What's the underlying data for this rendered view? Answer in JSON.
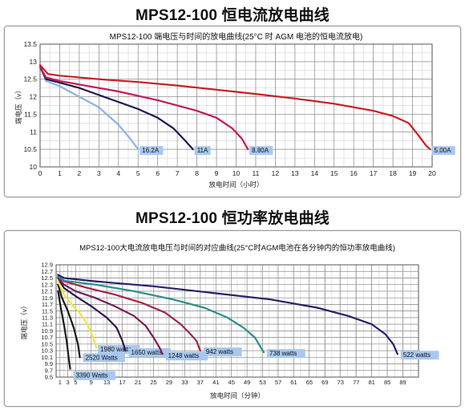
{
  "page": {
    "title1": "MPS12-100 恒电流放电曲线",
    "title2": "MPS12-100 恒功率放电曲线"
  },
  "chart_data": [
    {
      "type": "line",
      "title": "MPS12-100 端电压与时间的放电曲线(25°C 时 AGM 电池的恒电流放电)",
      "xlabel": "放电时间（小时）",
      "ylabel": "端电压（v）",
      "xlim": [
        0,
        20
      ],
      "ylim": [
        10,
        13.5
      ],
      "x_ticks": [
        "0",
        "1",
        "2",
        "3",
        "4",
        "5",
        "6",
        "7",
        "8",
        "9",
        "10",
        "11",
        "12",
        "13",
        "14",
        "15",
        "16",
        "17",
        "18",
        "19",
        "20"
      ],
      "y_ticks": [
        "10",
        "10.5",
        "11",
        "11.5",
        "12",
        "12.5",
        "13",
        "13.5"
      ],
      "grid": true,
      "series": [
        {
          "name": "16.2A",
          "color": "#8ab4e6",
          "points": [
            [
              0,
              12.9
            ],
            [
              0.3,
              12.45
            ],
            [
              1,
              12.3
            ],
            [
              2,
              12.0
            ],
            [
              3,
              11.7
            ],
            [
              4,
              11.2
            ],
            [
              4.6,
              10.8
            ],
            [
              5,
              10.5
            ]
          ]
        },
        {
          "name": "11A",
          "color": "#1e1a4e",
          "points": [
            [
              0,
              12.85
            ],
            [
              0.3,
              12.5
            ],
            [
              1,
              12.4
            ],
            [
              2,
              12.25
            ],
            [
              3,
              12.05
            ],
            [
              4,
              11.85
            ],
            [
              5,
              11.65
            ],
            [
              6,
              11.4
            ],
            [
              6.8,
              11.1
            ],
            [
              7.4,
              10.75
            ],
            [
              7.8,
              10.5
            ]
          ]
        },
        {
          "name": "8.80A",
          "color": "#c8185a",
          "points": [
            [
              0,
              12.85
            ],
            [
              0.3,
              12.55
            ],
            [
              1,
              12.45
            ],
            [
              2,
              12.35
            ],
            [
              4,
              12.15
            ],
            [
              6,
              11.9
            ],
            [
              8,
              11.6
            ],
            [
              9,
              11.4
            ],
            [
              9.8,
              11.1
            ],
            [
              10.3,
              10.8
            ],
            [
              10.6,
              10.5
            ]
          ]
        },
        {
          "name": "5.00A",
          "color": "#c81f25",
          "points": [
            [
              0,
              12.9
            ],
            [
              0.4,
              12.65
            ],
            [
              1,
              12.6
            ],
            [
              3,
              12.5
            ],
            [
              5,
              12.42
            ],
            [
              7,
              12.32
            ],
            [
              9,
              12.2
            ],
            [
              11,
              12.08
            ],
            [
              13,
              11.95
            ],
            [
              15,
              11.8
            ],
            [
              17,
              11.6
            ],
            [
              18,
              11.45
            ],
            [
              18.8,
              11.25
            ],
            [
              19.3,
              10.9
            ],
            [
              19.7,
              10.6
            ],
            [
              19.9,
              10.5
            ]
          ]
        }
      ]
    },
    {
      "type": "line",
      "title": "MPS12-100大电流放电电压与时间的对应曲线(25°C时AGM电池在各分钟内的恒功率放电曲线)",
      "xlabel": "放电时间（分钟）",
      "ylabel": "端电压（v）",
      "xlim": [
        0,
        93
      ],
      "ylim": [
        9.5,
        12.9
      ],
      "x_ticks": [
        "1",
        "3",
        "5",
        "9",
        "13",
        "17",
        "21",
        "25",
        "29",
        "33",
        "37",
        "41",
        "45",
        "49",
        "53",
        "57",
        "61",
        "65",
        "69",
        "73",
        "77",
        "81",
        "85",
        "89"
      ],
      "x_tick_values": [
        1,
        3,
        5,
        9,
        13,
        17,
        21,
        25,
        29,
        33,
        37,
        41,
        45,
        49,
        53,
        57,
        61,
        65,
        69,
        73,
        77,
        81,
        85,
        89
      ],
      "y_ticks": [
        "9.5",
        "9.7",
        "9.9",
        "10.1",
        "10.3",
        "10.5",
        "10.7",
        "10.9",
        "11.1",
        "11.3",
        "11.5",
        "11.7",
        "11.9",
        "12.1",
        "12.3",
        "12.5",
        "12.7",
        "12.9"
      ],
      "y_tick_values": [
        9.5,
        9.7,
        9.9,
        10.1,
        10.3,
        10.5,
        10.7,
        10.9,
        11.1,
        11.3,
        11.5,
        11.7,
        11.9,
        12.1,
        12.3,
        12.5,
        12.7,
        12.9
      ],
      "grid": true,
      "series": [
        {
          "name": "3390 Watts",
          "color": "#1a1a1a",
          "points": [
            [
              0.5,
              12.1
            ],
            [
              1.2,
              11.6
            ],
            [
              2,
              11.1
            ],
            [
              2.7,
              10.6
            ],
            [
              3.2,
              10.1
            ],
            [
              3.6,
              9.75
            ]
          ]
        },
        {
          "name": "2520 Watts",
          "color": "#1a1a1a",
          "points": [
            [
              0.5,
              12.3
            ],
            [
              1.5,
              11.9
            ],
            [
              3,
              11.5
            ],
            [
              4.5,
              11.0
            ],
            [
              5.6,
              10.5
            ],
            [
              6.1,
              10.1
            ]
          ]
        },
        {
          "name": "1980 watts",
          "color": "#f0e63c",
          "points": [
            [
              0.5,
              12.4
            ],
            [
              2,
              12.0
            ],
            [
              4,
              11.7
            ],
            [
              6,
              11.45
            ],
            [
              8,
              11.1
            ],
            [
              9.5,
              10.7
            ],
            [
              10.3,
              10.4
            ]
          ]
        },
        {
          "name": "1650 watts",
          "color": "#2b1a4a",
          "points": [
            [
              0.5,
              12.5
            ],
            [
              2,
              12.2
            ],
            [
              5,
              11.95
            ],
            [
              9,
              11.65
            ],
            [
              13,
              11.3
            ],
            [
              15.5,
              11.0
            ],
            [
              17,
              10.6
            ],
            [
              17.8,
              10.3
            ]
          ]
        },
        {
          "name": "1248 watts",
          "color": "#7a1d5a",
          "points": [
            [
              0.5,
              12.5
            ],
            [
              2,
              12.3
            ],
            [
              5,
              12.1
            ],
            [
              10,
              11.9
            ],
            [
              15,
              11.65
            ],
            [
              20,
              11.35
            ],
            [
              23,
              11.05
            ],
            [
              25,
              10.7
            ],
            [
              26.5,
              10.4
            ],
            [
              27.3,
              10.2
            ]
          ]
        },
        {
          "name": "942 watts",
          "color": "#a0264a",
          "points": [
            [
              0.5,
              12.55
            ],
            [
              2,
              12.4
            ],
            [
              8,
              12.2
            ],
            [
              15,
              12.0
            ],
            [
              22,
              11.75
            ],
            [
              28,
              11.45
            ],
            [
              32,
              11.1
            ],
            [
              34.5,
              10.8
            ],
            [
              36,
              10.6
            ],
            [
              37,
              10.3
            ]
          ]
        },
        {
          "name": "738 watts",
          "color": "#2a8f8a",
          "points": [
            [
              0.5,
              12.55
            ],
            [
              2,
              12.42
            ],
            [
              10,
              12.3
            ],
            [
              20,
              12.1
            ],
            [
              30,
              11.85
            ],
            [
              38,
              11.6
            ],
            [
              44,
              11.3
            ],
            [
              48,
              11.0
            ],
            [
              51,
              10.7
            ],
            [
              52.5,
              10.4
            ],
            [
              53.3,
              10.25
            ]
          ]
        },
        {
          "name": "522 watts",
          "color": "#26206a",
          "points": [
            [
              0.5,
              12.6
            ],
            [
              2,
              12.5
            ],
            [
              10,
              12.4
            ],
            [
              25,
              12.25
            ],
            [
              40,
              12.05
            ],
            [
              55,
              11.85
            ],
            [
              67,
              11.6
            ],
            [
              75,
              11.35
            ],
            [
              81,
              11.1
            ],
            [
              84.5,
              10.8
            ],
            [
              86.5,
              10.5
            ],
            [
              87.6,
              10.2
            ]
          ]
        }
      ]
    }
  ]
}
